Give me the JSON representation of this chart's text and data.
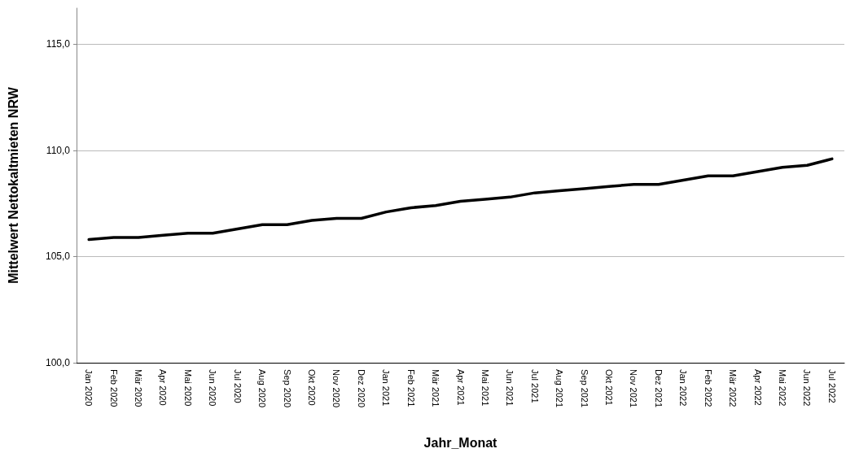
{
  "chart_data": {
    "type": "line",
    "xlabel": "Jahr_Monat",
    "ylabel": "Mittelwert Nettokaltmieten NRW",
    "categories": [
      "Jan 2020",
      "Feb 2020",
      "Mär 2020",
      "Apr 2020",
      "Mai 2020",
      "Jun 2020",
      "Jul 2020",
      "Aug 2020",
      "Sep 2020",
      "Okt 2020",
      "Nov 2020",
      "Dez 2020",
      "Jan 2021",
      "Feb 2021",
      "Mär 2021",
      "Apr 2021",
      "Mai 2021",
      "Jun 2021",
      "Jul 2021",
      "Aug 2021",
      "Sep 2021",
      "Okt 2021",
      "Nov 2021",
      "Dez 2021",
      "Jan 2022",
      "Feb 2022",
      "Mär 2022",
      "Apr 2022",
      "Mai 2022",
      "Jun 2022",
      "Jul 2022"
    ],
    "series": [
      {
        "color": "#000000",
        "values": [
          105.8,
          105.9,
          105.9,
          106.0,
          106.1,
          106.1,
          106.3,
          106.5,
          106.5,
          106.7,
          106.8,
          106.8,
          107.1,
          107.3,
          107.4,
          107.6,
          107.7,
          107.8,
          108.0,
          108.1,
          108.2,
          108.3,
          108.4,
          108.4,
          108.6,
          108.8,
          108.8,
          109.0,
          109.2,
          109.3,
          109.6
        ]
      }
    ],
    "ylim": [
      100,
      116.7
    ],
    "yticks": [
      {
        "value": 100,
        "label": "100,0"
      },
      {
        "value": 105,
        "label": "105,0"
      },
      {
        "value": 110,
        "label": "110,0"
      },
      {
        "value": 115,
        "label": "115,0"
      }
    ],
    "grid": "y",
    "marker": "none",
    "line_style": "solid"
  }
}
